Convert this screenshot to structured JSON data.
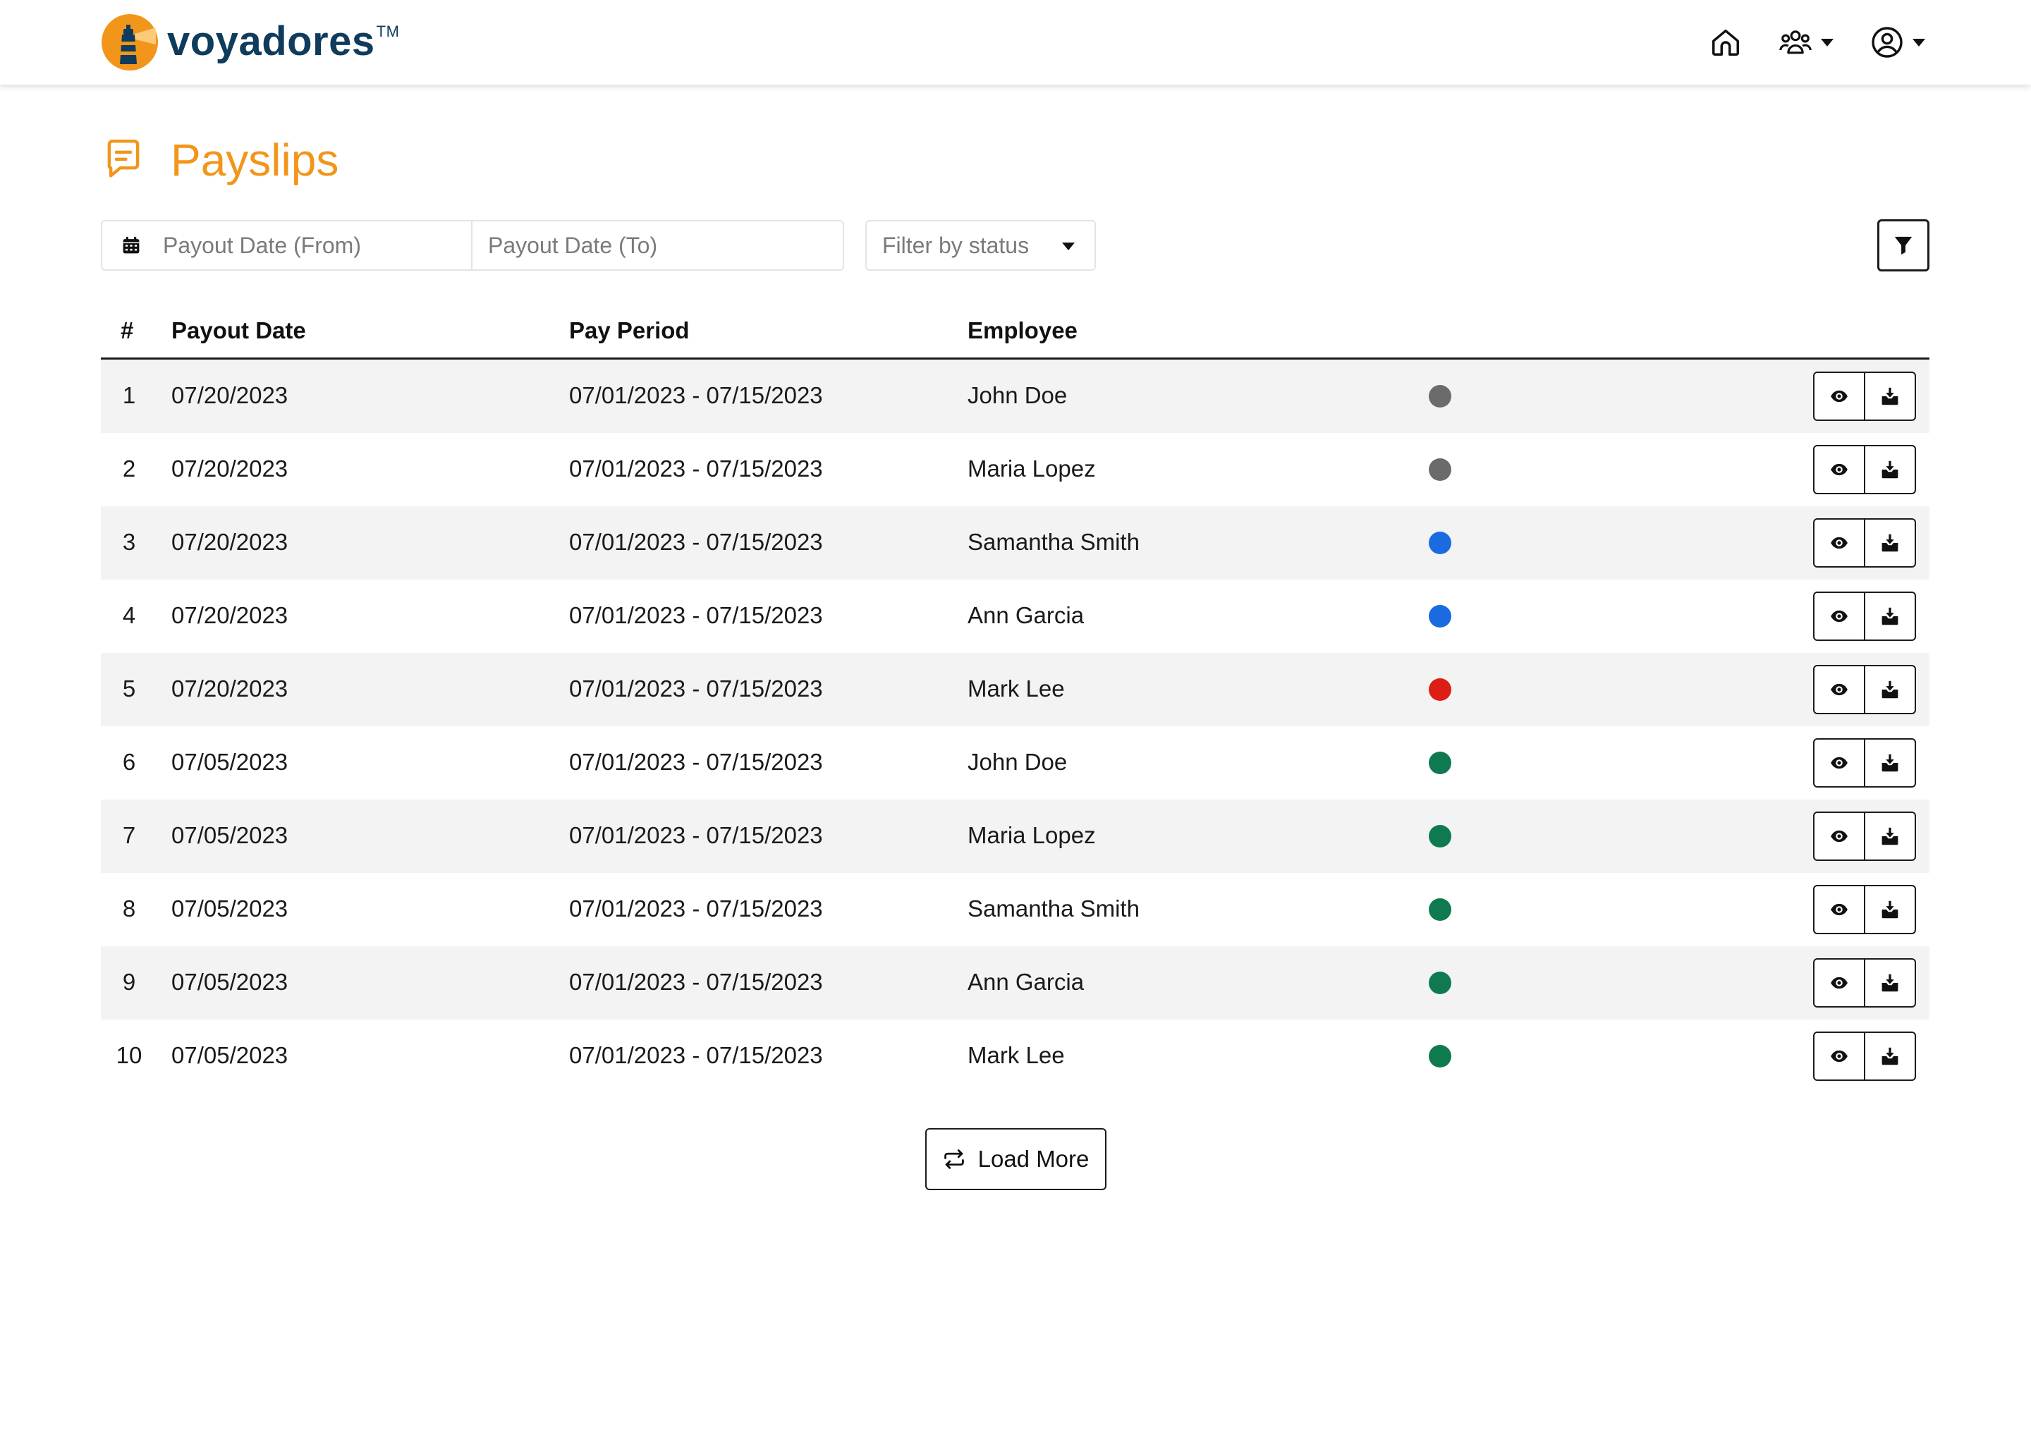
{
  "brand": {
    "name": "voyadores",
    "trademark": "TM"
  },
  "nav": {
    "home_icon": "home-icon",
    "team_icon": "users-icon",
    "account_icon": "user-circle-icon"
  },
  "page": {
    "title": "Payslips",
    "title_icon": "receipt-icon",
    "title_color": "#f2961b"
  },
  "filters": {
    "date_from_placeholder": "Payout Date (From)",
    "date_to_placeholder": "Payout Date (To)",
    "status_placeholder": "Filter by status"
  },
  "table": {
    "headers": {
      "num": "#",
      "payout_date": "Payout Date",
      "pay_period": "Pay Period",
      "employee": "Employee"
    },
    "rows": [
      {
        "num": "1",
        "payout_date": "07/20/2023",
        "pay_period": "07/01/2023 - 07/15/2023",
        "employee": "John Doe",
        "status_color": "#6b6b6b"
      },
      {
        "num": "2",
        "payout_date": "07/20/2023",
        "pay_period": "07/01/2023 - 07/15/2023",
        "employee": "Maria Lopez",
        "status_color": "#6b6b6b"
      },
      {
        "num": "3",
        "payout_date": "07/20/2023",
        "pay_period": "07/01/2023 - 07/15/2023",
        "employee": "Samantha Smith",
        "status_color": "#1a6be0"
      },
      {
        "num": "4",
        "payout_date": "07/20/2023",
        "pay_period": "07/01/2023 - 07/15/2023",
        "employee": "Ann Garcia",
        "status_color": "#1a6be0"
      },
      {
        "num": "5",
        "payout_date": "07/20/2023",
        "pay_period": "07/01/2023 - 07/15/2023",
        "employee": "Mark Lee",
        "status_color": "#dc1e14"
      },
      {
        "num": "6",
        "payout_date": "07/05/2023",
        "pay_period": "07/01/2023 - 07/15/2023",
        "employee": "John Doe",
        "status_color": "#0f7a50"
      },
      {
        "num": "7",
        "payout_date": "07/05/2023",
        "pay_period": "07/01/2023 - 07/15/2023",
        "employee": "Maria Lopez",
        "status_color": "#0f7a50"
      },
      {
        "num": "8",
        "payout_date": "07/05/2023",
        "pay_period": "07/01/2023 - 07/15/2023",
        "employee": "Samantha Smith",
        "status_color": "#0f7a50"
      },
      {
        "num": "9",
        "payout_date": "07/05/2023",
        "pay_period": "07/01/2023 - 07/15/2023",
        "employee": "Ann Garcia",
        "status_color": "#0f7a50"
      },
      {
        "num": "10",
        "payout_date": "07/05/2023",
        "pay_period": "07/01/2023 - 07/15/2023",
        "employee": "Mark Lee",
        "status_color": "#0f7a50"
      }
    ]
  },
  "load_more": {
    "label": "Load More"
  }
}
